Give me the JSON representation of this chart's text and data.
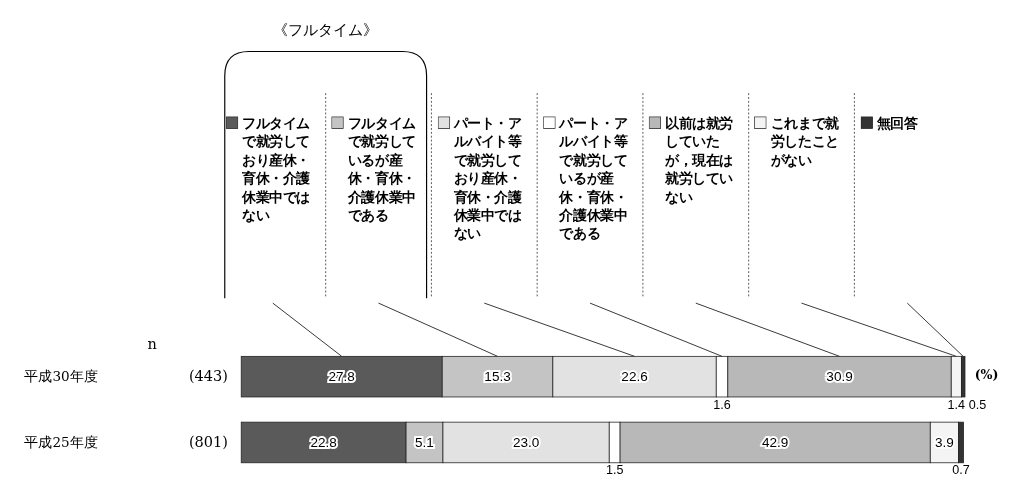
{
  "chart_data": {
    "type": "bar",
    "orientation": "horizontal",
    "stacked": true,
    "data_labels": true,
    "legend": "top",
    "categories": [
      "平成30年度",
      "平成25年度"
    ],
    "series": [
      {
        "name": "フルタイムで就労しており産休・育休・介護休業中ではない",
        "color": "#5a5a5a",
        "values": [
          27.8,
          22.8
        ]
      },
      {
        "name": "フルタイムで就労しているが産休・育休・介護休業中である",
        "color": "#c4c4c4",
        "values": [
          15.3,
          5.1
        ]
      },
      {
        "name": "パート・アルバイト等で就労しており産休・育休・介護休業中ではない",
        "color": "#e2e2e2",
        "values": [
          22.6,
          23.0
        ],
        "value_labels": [
          "22.6",
          "23.0"
        ]
      },
      {
        "name": "パート・アルバイト等で就労しているが産休・育休・介護休業中である",
        "color": "#ffffff",
        "values": [
          1.6,
          1.5
        ]
      },
      {
        "name": "以前は就労していたが，現在は就労していない",
        "color": "#b8b8b8",
        "values": [
          30.9,
          42.9
        ]
      },
      {
        "name": "これまで就労したことがない",
        "color": "#f4f4f4",
        "values": [
          1.4,
          3.9
        ]
      },
      {
        "name": "無回答",
        "color": "#333333",
        "values": [
          0.5,
          0.7
        ]
      }
    ],
    "annotations": [
      "n",
      "(443)",
      "(801)",
      "(%)",
      "《フルタイム》"
    ]
  }
}
